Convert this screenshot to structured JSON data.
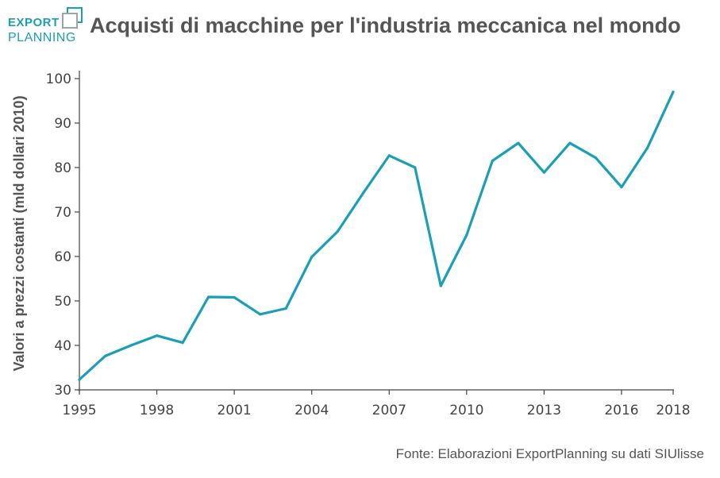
{
  "brand": {
    "logo_line1": "EXPORT",
    "logo_line2": "PLANNING",
    "accent_color": "#1a9fb5",
    "icon": "logo-squares-icon"
  },
  "header": {
    "title": "Acquisti di macchine per l'industria meccanica nel mondo"
  },
  "source": "Fonte: Elaborazioni ExportPlanning su dati SIUlisse",
  "chart_data": {
    "type": "line",
    "title": "Acquisti di macchine per l'industria meccanica nel mondo",
    "xlabel": "",
    "ylabel": "Valori a prezzi costanti (mld dollari 2010)",
    "x": [
      1995,
      1996,
      1997,
      1998,
      1999,
      2000,
      2001,
      2002,
      2003,
      2004,
      2005,
      2006,
      2007,
      2008,
      2009,
      2010,
      2011,
      2012,
      2013,
      2014,
      2015,
      2016,
      2017,
      2018
    ],
    "series": [
      {
        "color": "#1a9fb5",
        "values": [
          32.3,
          37.6,
          40.0,
          42.2,
          40.6,
          50.9,
          50.8,
          47.0,
          48.3,
          59.9,
          65.6,
          74.3,
          82.7,
          80.0,
          53.4,
          64.8,
          81.5,
          85.5,
          78.9,
          85.5,
          82.2,
          75.6,
          84.4,
          97.0
        ]
      }
    ],
    "xlim": [
      1995,
      2018
    ],
    "ylim": [
      30,
      100
    ],
    "x_ticks": [
      "1995",
      "1998",
      "2001",
      "2004",
      "2007",
      "2010",
      "2013",
      "2016",
      "2018"
    ],
    "y_ticks": [
      "30",
      "40",
      "50",
      "60",
      "70",
      "80",
      "90",
      "100"
    ],
    "grid": false,
    "legend": "none"
  }
}
